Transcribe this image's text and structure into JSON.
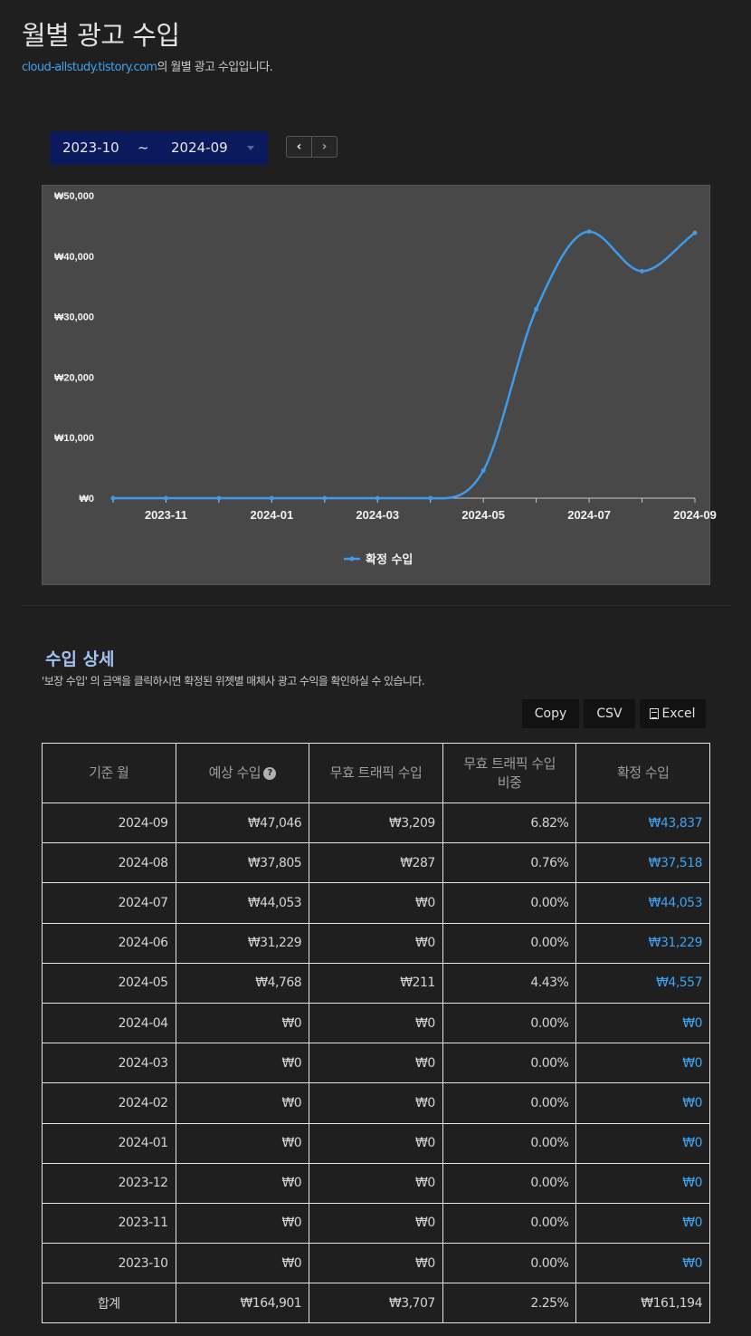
{
  "header": {
    "title": "월별 광고 수입",
    "site_link": "cloud-allstudy.tistory.com",
    "subtitle_suffix": "의 월별 광고 수입입니다."
  },
  "range": {
    "from": "2023-10",
    "separator": "~",
    "to": "2024-09"
  },
  "nav": {
    "prev": "‹",
    "next": "›"
  },
  "chart_data": {
    "type": "line",
    "title": "",
    "xlabel": "",
    "ylabel": "",
    "x": [
      "2023-10",
      "2023-11",
      "2023-12",
      "2024-01",
      "2024-02",
      "2024-03",
      "2024-04",
      "2024-05",
      "2024-06",
      "2024-07",
      "2024-08",
      "2024-09"
    ],
    "x_tick_labels": [
      "2023-11",
      "2024-01",
      "2024-03",
      "2024-05",
      "2024-07",
      "2024-09"
    ],
    "y_tick_labels": [
      "₩0",
      "₩10,000",
      "₩20,000",
      "₩30,000",
      "₩40,000",
      "₩50,000"
    ],
    "ylim": [
      0,
      50000
    ],
    "grid": false,
    "legend_position": "bottom",
    "series": [
      {
        "name": "확정 수입",
        "color": "#3d9be9",
        "values": [
          0,
          0,
          0,
          0,
          0,
          0,
          0,
          4557,
          31229,
          44053,
          37518,
          43837
        ]
      }
    ]
  },
  "details": {
    "title": "수입 상세",
    "description": "'보장 수입' 의 금액을 클릭하시면 확정된 위젯별 매체사 광고 수익을 확인하실 수 있습니다.",
    "buttons": {
      "copy": "Copy",
      "csv": "CSV",
      "excel": "Excel"
    }
  },
  "table": {
    "headers": {
      "month": "기준 월",
      "expected": "예상 수입",
      "invalid": "무효 트래픽 수입",
      "ratio_line1": "무효 트래픽 수입",
      "ratio_line2": "비중",
      "confirmed": "확정 수입"
    },
    "rows": [
      {
        "month": "2024-09",
        "expected": "₩47,046",
        "invalid": "₩3,209",
        "ratio": "6.82%",
        "confirmed": "₩43,837"
      },
      {
        "month": "2024-08",
        "expected": "₩37,805",
        "invalid": "₩287",
        "ratio": "0.76%",
        "confirmed": "₩37,518"
      },
      {
        "month": "2024-07",
        "expected": "₩44,053",
        "invalid": "₩0",
        "ratio": "0.00%",
        "confirmed": "₩44,053"
      },
      {
        "month": "2024-06",
        "expected": "₩31,229",
        "invalid": "₩0",
        "ratio": "0.00%",
        "confirmed": "₩31,229"
      },
      {
        "month": "2024-05",
        "expected": "₩4,768",
        "invalid": "₩211",
        "ratio": "4.43%",
        "confirmed": "₩4,557"
      },
      {
        "month": "2024-04",
        "expected": "₩0",
        "invalid": "₩0",
        "ratio": "0.00%",
        "confirmed": "₩0"
      },
      {
        "month": "2024-03",
        "expected": "₩0",
        "invalid": "₩0",
        "ratio": "0.00%",
        "confirmed": "₩0"
      },
      {
        "month": "2024-02",
        "expected": "₩0",
        "invalid": "₩0",
        "ratio": "0.00%",
        "confirmed": "₩0"
      },
      {
        "month": "2024-01",
        "expected": "₩0",
        "invalid": "₩0",
        "ratio": "0.00%",
        "confirmed": "₩0"
      },
      {
        "month": "2023-12",
        "expected": "₩0",
        "invalid": "₩0",
        "ratio": "0.00%",
        "confirmed": "₩0"
      },
      {
        "month": "2023-11",
        "expected": "₩0",
        "invalid": "₩0",
        "ratio": "0.00%",
        "confirmed": "₩0"
      },
      {
        "month": "2023-10",
        "expected": "₩0",
        "invalid": "₩0",
        "ratio": "0.00%",
        "confirmed": "₩0"
      }
    ],
    "total": {
      "label": "합계",
      "expected": "₩164,901",
      "invalid": "₩3,707",
      "ratio": "2.25%",
      "confirmed": "₩161,194"
    }
  }
}
